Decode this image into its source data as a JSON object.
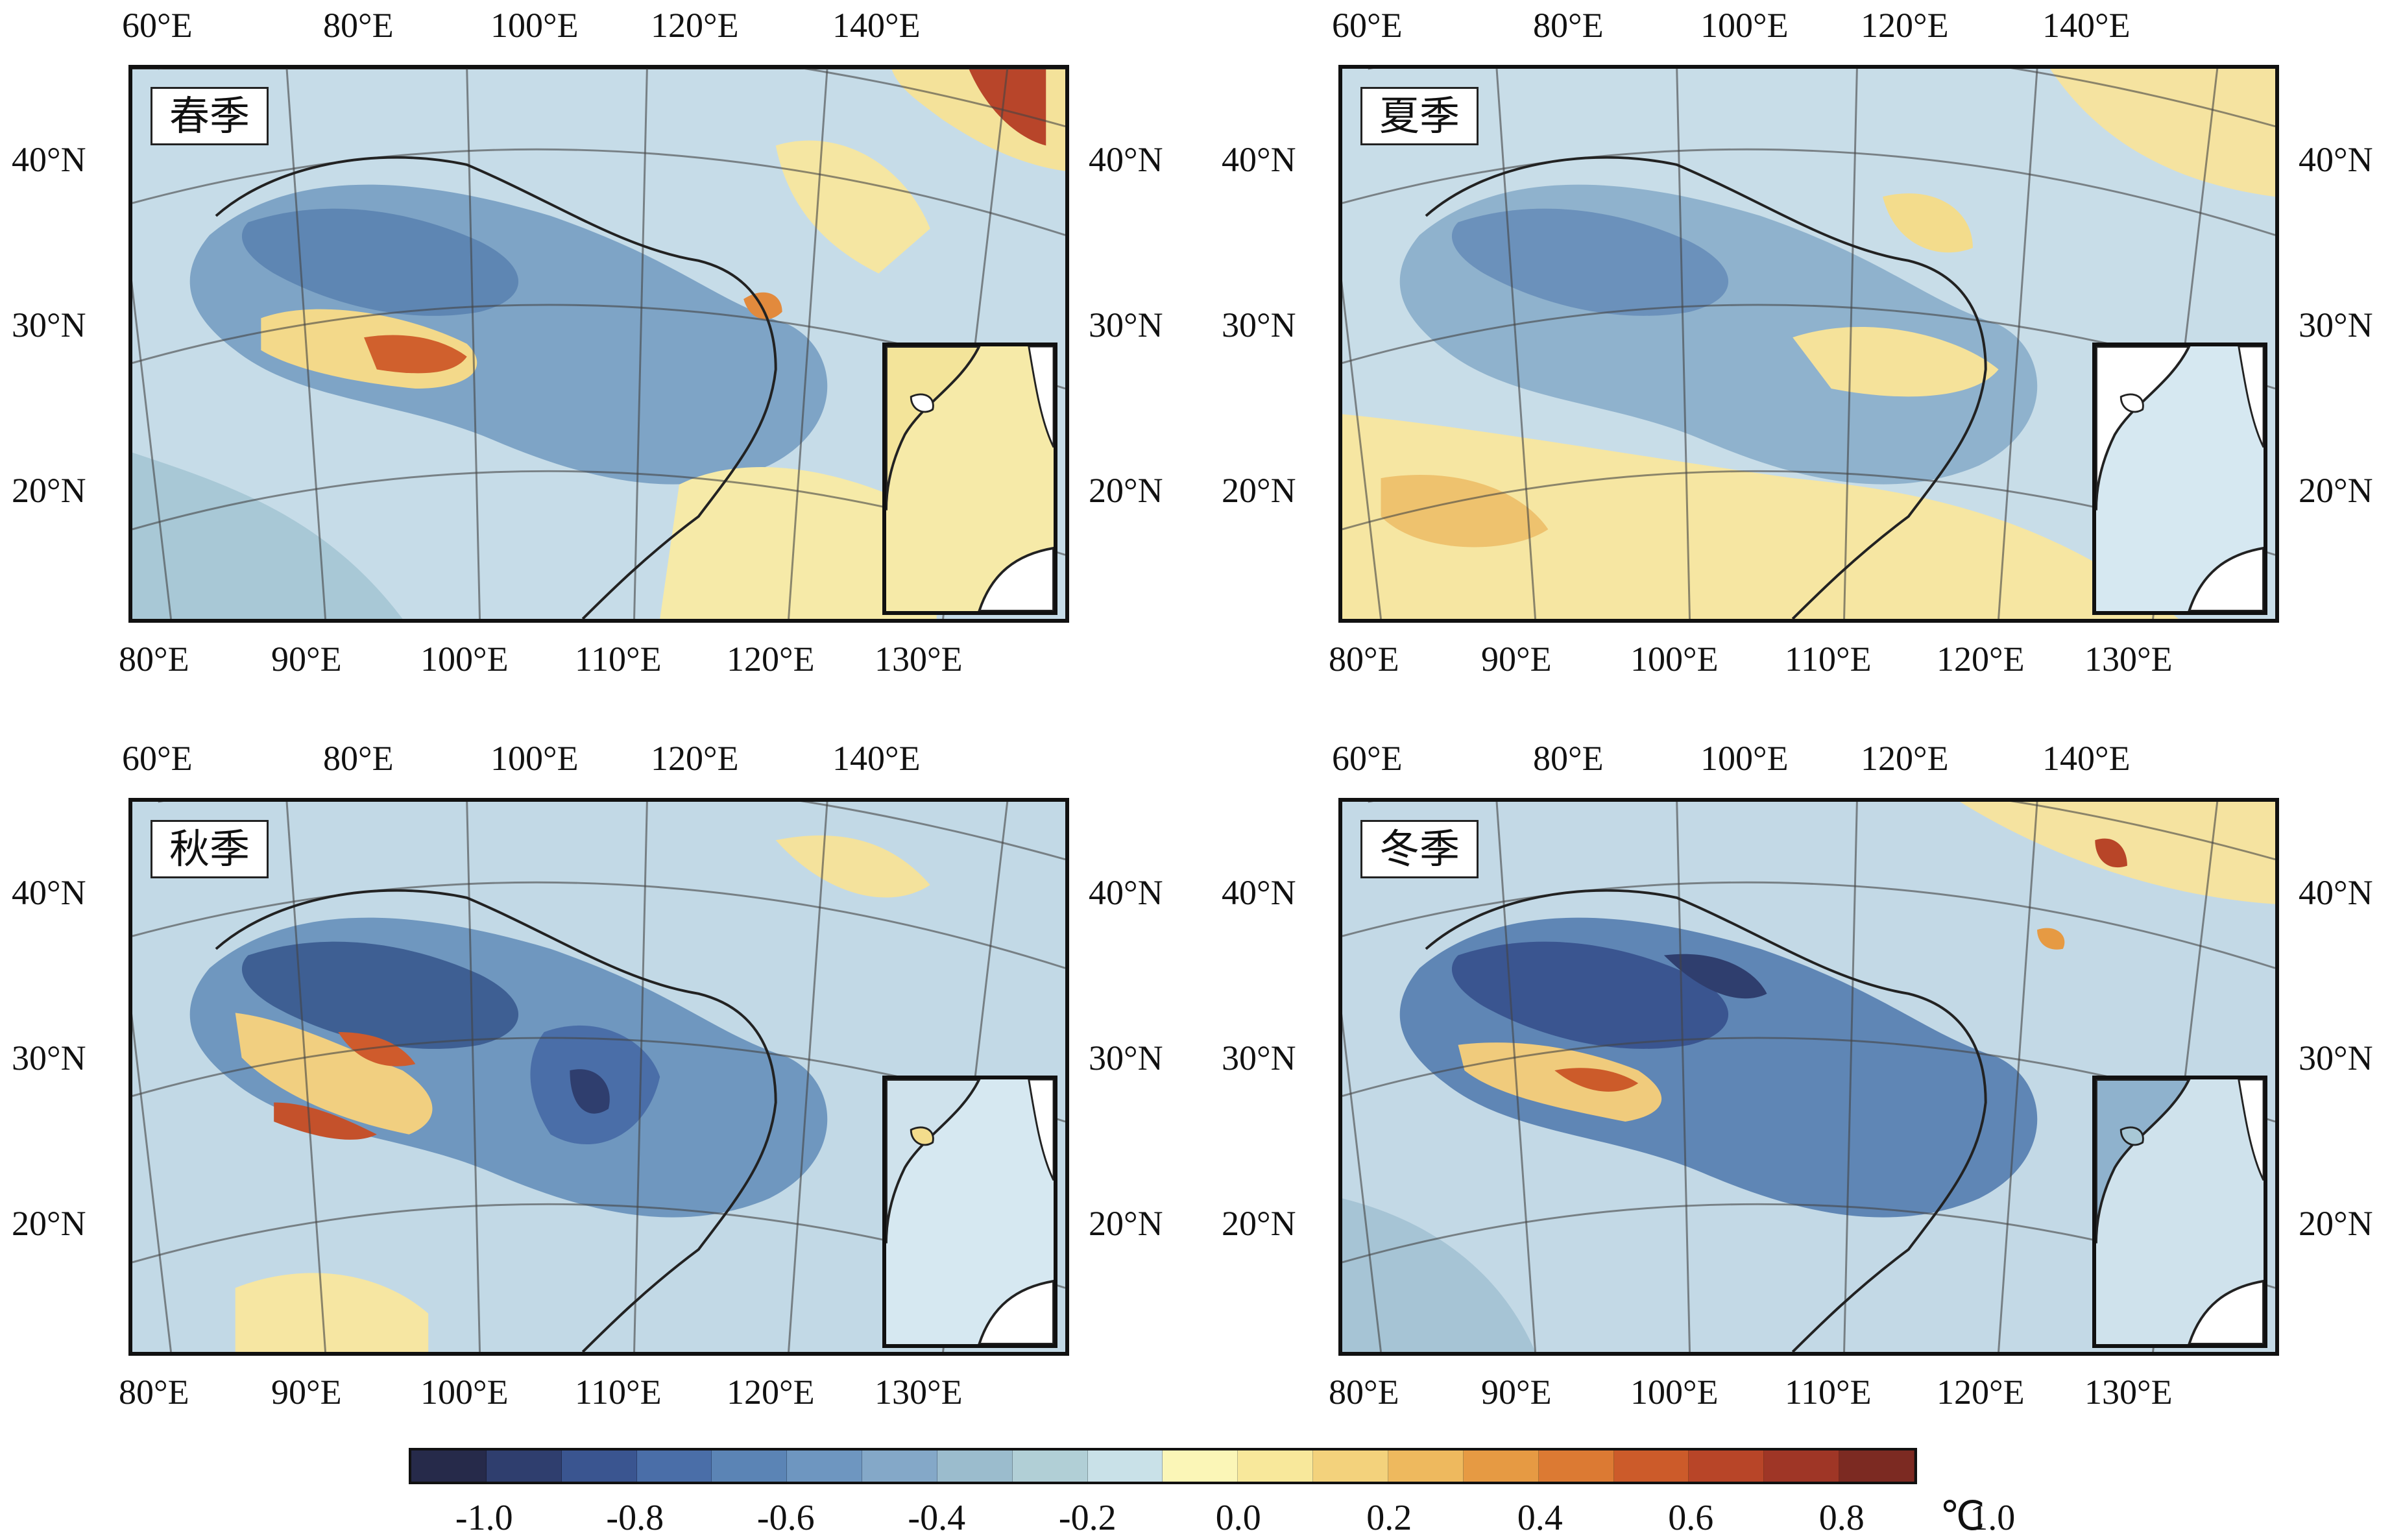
{
  "panels": [
    {
      "label": "春季",
      "tone": "spring"
    },
    {
      "label": "夏季",
      "tone": "summer"
    },
    {
      "label": "秋季",
      "tone": "autumn"
    },
    {
      "label": "冬季",
      "tone": "winter"
    }
  ],
  "axes": {
    "top_lon": [
      "60°E",
      "80°E",
      "100°E",
      "120°E",
      "140°E"
    ],
    "bottom_lon": [
      "80°E",
      "90°E",
      "100°E",
      "110°E",
      "120°E",
      "130°E"
    ],
    "lat": [
      "40°N",
      "30°N",
      "20°N"
    ]
  },
  "colorbar": {
    "labels": [
      "-1.0",
      "-0.8",
      "-0.6",
      "-0.4",
      "-0.2",
      "0.0",
      "0.2",
      "0.4",
      "0.6",
      "0.8",
      "1.0"
    ],
    "unit": "℃",
    "colors": [
      "#262a4a",
      "#2f3e6e",
      "#3a5590",
      "#4a6ea8",
      "#5b84b5",
      "#6e96c0",
      "#84a8c8",
      "#9bbccd",
      "#b1cfd6",
      "#c9e1e8",
      "#fbf6b7",
      "#f8e89b",
      "#f3d27c",
      "#eeb95e",
      "#e69a43",
      "#dc7a33",
      "#cc5b2a",
      "#b84528",
      "#9f3626",
      "#7c2a22"
    ]
  }
}
